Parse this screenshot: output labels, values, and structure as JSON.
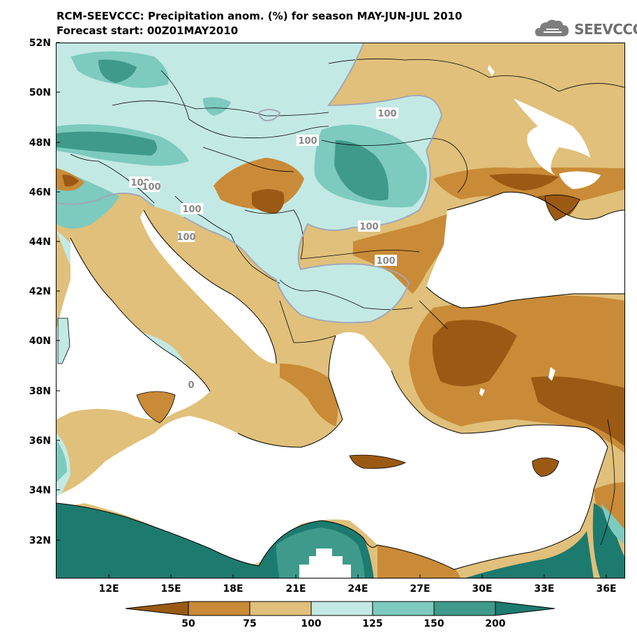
{
  "title_line1": "RCM-SEEVCCC: Precipitation anom. (%) for season MAY-JUN-JUL 2010",
  "title_line2": "Forecast start: 00Z01MAY2010",
  "logo": {
    "text": "SEEVCCC",
    "icon": "cloud-icon"
  },
  "colors": {
    "lt50": "#9a5a13",
    "c50_75": "#c98b37",
    "c75_100": "#e0c07a",
    "c100_125": "#c3e9e4",
    "c125_150": "#7dcabf",
    "c150_200": "#3f9a8c",
    "gt200": "#1d7a6e",
    "sea": "#ffffff",
    "contour": "#a3a8b8"
  },
  "lat_labels": [
    "52N",
    "50N",
    "48N",
    "46N",
    "44N",
    "42N",
    "40N",
    "38N",
    "36N",
    "34N",
    "32N"
  ],
  "lon_labels": [
    "12E",
    "15E",
    "18E",
    "21E",
    "24E",
    "27E",
    "30E",
    "33E",
    "36E"
  ],
  "contour_labels": [
    "100",
    "100",
    "100",
    "100",
    "100",
    "100",
    "100",
    "100",
    "0"
  ],
  "colorbar": {
    "labels": [
      "50",
      "75",
      "100",
      "125",
      "150",
      "200"
    ]
  }
}
